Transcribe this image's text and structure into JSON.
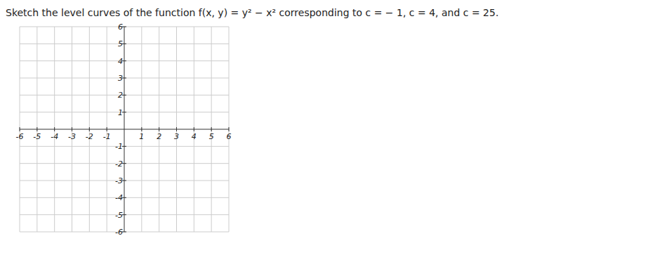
{
  "chart_data": {
    "type": "scatter",
    "title": "Sketch the level curves of the function f(x, y) = y² − x² corresponding to c = − 1, c = 4, and c = 25.",
    "xlim": [
      -6,
      6
    ],
    "ylim": [
      -6,
      6
    ],
    "xticks": [
      -6,
      -5,
      -4,
      -3,
      -2,
      -1,
      1,
      2,
      3,
      4,
      5,
      6
    ],
    "yticks": [
      -6,
      -5,
      -4,
      -3,
      -2,
      -1,
      1,
      2,
      3,
      4,
      5,
      6
    ],
    "grid": true,
    "series": []
  }
}
